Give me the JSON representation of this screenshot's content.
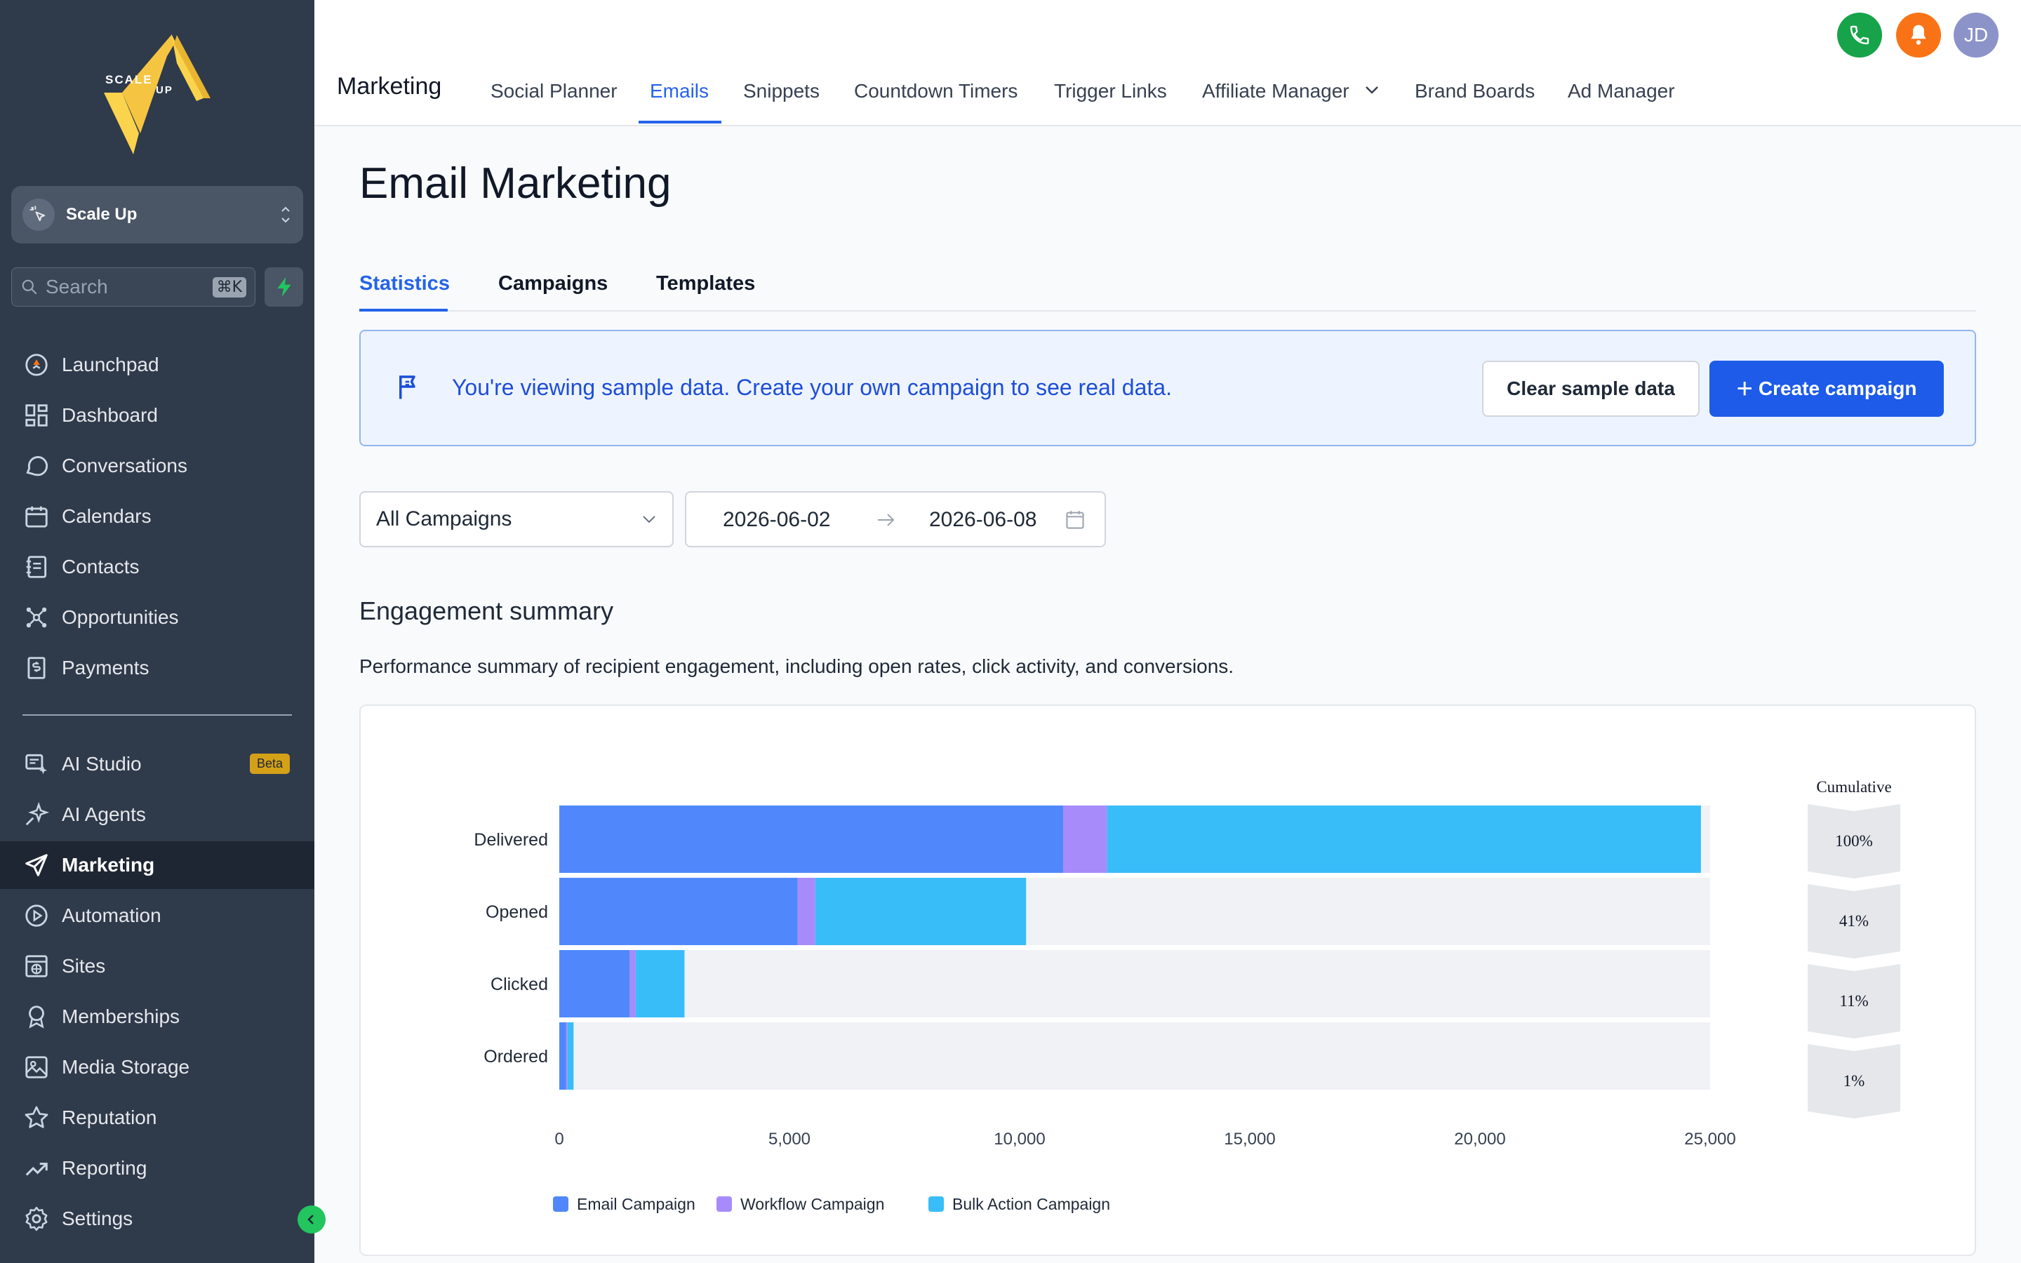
{
  "sidebar": {
    "logo_text": [
      "SCALE",
      "UP"
    ],
    "workspace": "Scale Up",
    "search_placeholder": "Search",
    "search_shortcut": "⌘K",
    "items_top": [
      {
        "label": "Launchpad",
        "icon": "rocket-icon"
      },
      {
        "label": "Dashboard",
        "icon": "dashboard-icon"
      },
      {
        "label": "Conversations",
        "icon": "chat-icon"
      },
      {
        "label": "Calendars",
        "icon": "calendar-icon"
      },
      {
        "label": "Contacts",
        "icon": "contacts-icon"
      },
      {
        "label": "Opportunities",
        "icon": "opportunities-icon"
      },
      {
        "label": "Payments",
        "icon": "payments-icon"
      }
    ],
    "items_bottom": [
      {
        "label": "AI Studio",
        "icon": "ai-studio-icon"
      },
      {
        "label": "AI Agents",
        "icon": "sparkle-icon"
      },
      {
        "label": "Marketing",
        "icon": "send-icon"
      },
      {
        "label": "Automation",
        "icon": "automation-icon"
      },
      {
        "label": "Sites",
        "icon": "sites-icon"
      },
      {
        "label": "Memberships",
        "icon": "badge-icon"
      },
      {
        "label": "Media Storage",
        "icon": "image-icon"
      },
      {
        "label": "Reputation",
        "icon": "star-icon"
      },
      {
        "label": "Reporting",
        "icon": "trend-icon"
      },
      {
        "label": "Settings",
        "icon": "gear-icon"
      }
    ],
    "beta_badge": "Beta",
    "active_item": "Marketing"
  },
  "topbar": {
    "title": "Marketing",
    "nav": [
      "Social Planner",
      "Emails",
      "Snippets",
      "Countdown Timers",
      "Trigger Links",
      "Affiliate Manager",
      "Brand Boards",
      "Ad Manager"
    ],
    "active_nav": "Emails",
    "user_initials": "JD"
  },
  "page": {
    "title": "Email Marketing",
    "tabs": [
      "Statistics",
      "Campaigns",
      "Templates"
    ],
    "active_tab": "Statistics",
    "banner": {
      "text": "You're viewing sample data. Create your own campaign to see real data.",
      "clear_label": "Clear sample data",
      "create_label": "Create campaign"
    },
    "filters": {
      "campaign": "All Campaigns",
      "date_start": "2026-06-02",
      "date_end": "2026-06-08"
    },
    "section_title": "Engagement summary",
    "section_desc": "Performance summary of recipient engagement, including open rates, click activity, and conversions."
  },
  "colors": {
    "email": "#5088fb",
    "workflow": "#a78bfa",
    "bulk": "#38bdf8",
    "accent": "#2563eb"
  },
  "chart_data": {
    "type": "bar",
    "orientation": "horizontal",
    "stacked": true,
    "categories": [
      "Delivered",
      "Opened",
      "Clicked",
      "Ordered"
    ],
    "series": [
      {
        "name": "Email Campaign",
        "values": [
          10950,
          5180,
          1530,
          150
        ]
      },
      {
        "name": "Workflow Campaign",
        "values": [
          950,
          380,
          130,
          30
        ]
      },
      {
        "name": "Bulk Action Campaign",
        "values": [
          12900,
          4580,
          1060,
          130
        ]
      }
    ],
    "xlim": [
      0,
      25000
    ],
    "xticks": [
      "0",
      "5,000",
      "10,000",
      "15,000",
      "20,000",
      "25,000"
    ],
    "cumulative_title": "Cumulative",
    "cumulative": [
      "100%",
      "41%",
      "11%",
      "1%"
    ],
    "legend_position": "bottom-left"
  }
}
